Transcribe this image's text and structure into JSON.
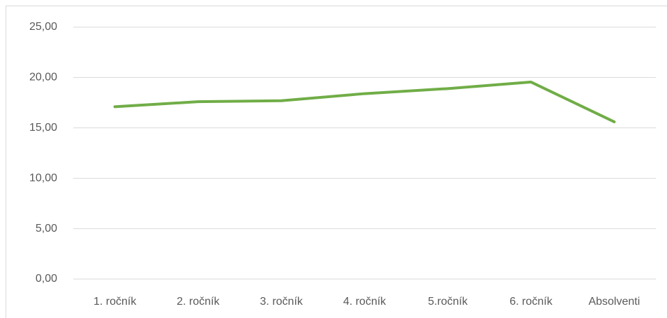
{
  "chart_data": {
    "type": "line",
    "categories": [
      "1. ročník",
      "2. ročník",
      "3. ročník",
      "4. ročník",
      "5.ročník",
      "6. ročník",
      "Absolventi"
    ],
    "series": [
      {
        "color": "#70ad47",
        "values": [
          17.1,
          17.6,
          17.7,
          18.4,
          18.9,
          19.55,
          15.6
        ]
      }
    ],
    "ylim": [
      0,
      25
    ],
    "yticks": [
      {
        "value": 0,
        "label": "0,00"
      },
      {
        "value": 5,
        "label": "5,00"
      },
      {
        "value": 10,
        "label": "10,00"
      },
      {
        "value": 15,
        "label": "15,00"
      },
      {
        "value": 20,
        "label": "20,00"
      },
      {
        "value": 25,
        "label": "25,00"
      }
    ],
    "grid": true
  }
}
